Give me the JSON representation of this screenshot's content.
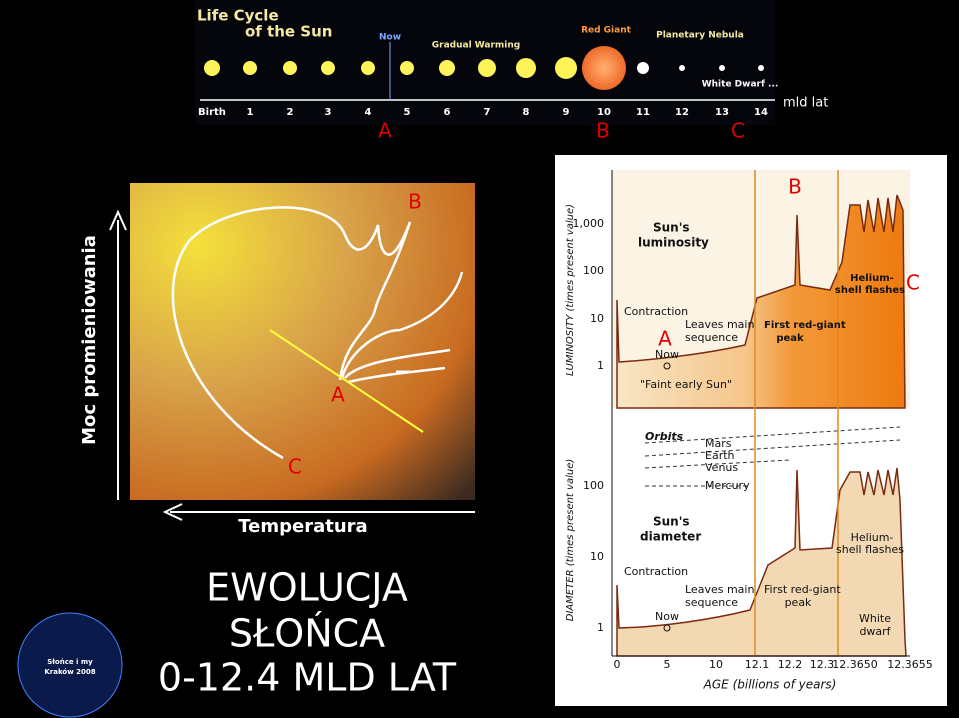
{
  "life_cycle": {
    "title_lines": [
      "Life Cycle",
      "of the Sun"
    ],
    "stages": [
      "Now",
      "Gradual Warming",
      "Red Giant",
      "Planetary Nebula",
      "White Dwarf ..."
    ],
    "axis_labels": [
      "Birth",
      "1",
      "2",
      "3",
      "4",
      "5",
      "6",
      "7",
      "8",
      "9",
      "10",
      "11",
      "12",
      "13",
      "14"
    ],
    "unit": "mld lat",
    "markers": [
      "A",
      "B",
      "C"
    ]
  },
  "hr_diagram": {
    "y_label": "Moc promieniowania",
    "x_label": "Temperatura",
    "markers": [
      "B",
      "A",
      "C"
    ]
  },
  "evolution_chart": {
    "luminosity": {
      "title_lines": [
        "Sun's",
        "luminosity"
      ],
      "y_label": "LUMINOSITY (times present value)",
      "yticks": [
        "1,000",
        "100",
        "10",
        "1"
      ],
      "contraction": "Contraction",
      "leaves_main_sequence": [
        "Leaves main",
        "sequence"
      ],
      "now": "Now",
      "faint_early_sun": "\"Faint early Sun\"",
      "first_red_giant_peak": [
        "First red-giant",
        "peak"
      ],
      "helium_shell_flashes": [
        "Helium-",
        "shell flashes"
      ],
      "markers": [
        "A",
        "B",
        "C"
      ]
    },
    "diameter": {
      "orbits": "Orbits",
      "planets": [
        "Mars",
        "Earth",
        "Venus",
        "Mercury"
      ],
      "title_lines": [
        "Sun's",
        "diameter"
      ],
      "y_label": "DIAMETER (times present value)",
      "yticks": [
        "100",
        "10",
        "1"
      ],
      "contraction": "Contraction",
      "leaves_main_sequence": [
        "Leaves main",
        "sequence"
      ],
      "now": "Now",
      "first_red_giant_peak": [
        "First red-giant",
        "peak"
      ],
      "helium_shell_flashes": [
        "Helium-",
        "shell flashes"
      ],
      "white_dwarf": [
        "White",
        "dwarf"
      ]
    },
    "xticks": [
      "0",
      "5",
      "10",
      "12.1",
      "12.2",
      "12.3",
      "12.3650",
      "12.3655"
    ],
    "x_label": "AGE (billions of years)"
  },
  "headline": [
    "EWOLUCJA",
    "SŁOŃCA",
    "0-12.4 MLD LAT"
  ],
  "logo": [
    "Słońce i my",
    "Kraków 2008"
  ]
}
